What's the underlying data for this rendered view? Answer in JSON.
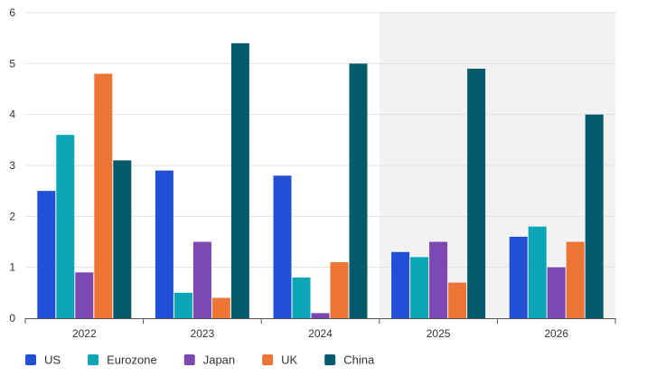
{
  "chart_data": {
    "type": "bar",
    "categories": [
      "2022",
      "2023",
      "2024",
      "2025",
      "2026"
    ],
    "series": [
      {
        "name": "US",
        "color": "#2150d6",
        "values": [
          2.5,
          2.9,
          2.8,
          1.3,
          1.6
        ]
      },
      {
        "name": "Eurozone",
        "color": "#0aa6b8",
        "values": [
          3.6,
          0.5,
          0.8,
          1.2,
          1.8
        ]
      },
      {
        "name": "Japan",
        "color": "#7a48b0",
        "values": [
          0.9,
          1.5,
          0.1,
          1.5,
          1.0
        ]
      },
      {
        "name": "UK",
        "color": "#ec7434",
        "values": [
          4.8,
          0.4,
          1.1,
          0.7,
          1.5
        ]
      },
      {
        "name": "China",
        "color": "#055a6c",
        "values": [
          3.1,
          5.4,
          5.0,
          4.9,
          4.0
        ]
      }
    ],
    "ylim": [
      0,
      6
    ],
    "yticks": [
      0,
      1,
      2,
      3,
      4,
      5,
      6
    ],
    "grid": true,
    "legend_position": "bottom-left",
    "shaded_categories": [
      "2025",
      "2026"
    ],
    "shade_color": "#f2f2f2",
    "title": "",
    "xlabel": "",
    "ylabel": ""
  }
}
